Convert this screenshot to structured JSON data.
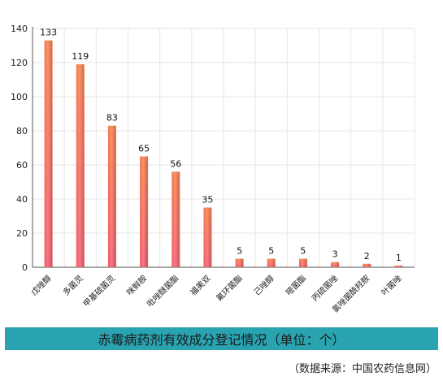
{
  "chart_data": {
    "type": "bar",
    "title": "赤霉病药剂有效成分登记情况（单位：个）",
    "categories": [
      "戊唑醇",
      "多菌灵",
      "甲基硫菌灵",
      "咪鲜胺",
      "吡唑醚菌酯",
      "福美双",
      "氟环菌酯",
      "己唑醇",
      "嘧菌酯",
      "丙硫菌唑",
      "氯唑菌酰羟胺",
      "叶菌唑"
    ],
    "values": [
      133,
      119,
      83,
      65,
      56,
      35,
      5,
      5,
      5,
      3,
      2,
      1
    ],
    "yticks": [
      0,
      20,
      40,
      60,
      80,
      100,
      120,
      140
    ],
    "ylim": [
      0,
      140
    ],
    "xlabel": "",
    "ylabel": "",
    "grid": true,
    "colors": {
      "bar_top": "#f47c4a",
      "bar_bottom": "#f25a6a",
      "grid": "#e6e6e6",
      "axis": "#555555"
    }
  },
  "banner": {
    "title": "赤霉病药剂有效成分登记情况（单位：个）",
    "background": "#2aa3b0"
  },
  "footer": {
    "source": "（数据来源：中国农药信息网）"
  }
}
